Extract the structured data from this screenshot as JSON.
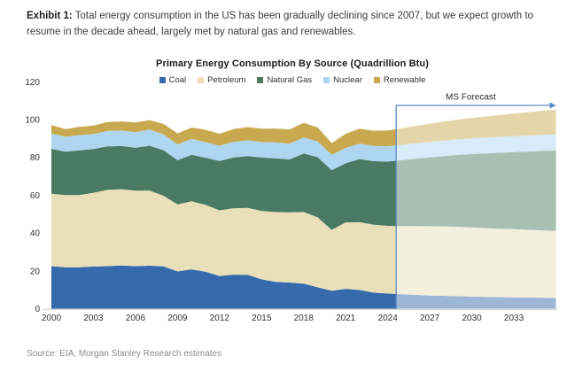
{
  "exhibit": {
    "label": "Exhibit 1:",
    "text": " Total energy consumption in the US has been gradually declining since 2007, but we expect growth to resume in the decade ahead, largely met by natural gas and renewables."
  },
  "chart_data": {
    "type": "area",
    "stacked": true,
    "title": "Primary Energy Consumption By Source (Quadrillion Btu)",
    "xlabel": "",
    "ylabel": "",
    "x_start": 2000,
    "x_end": 2036,
    "x_tick_labels": [
      2000,
      2003,
      2006,
      2009,
      2012,
      2015,
      2018,
      2021,
      2024,
      2027,
      2030,
      2033
    ],
    "ylim": [
      0,
      120
    ],
    "y_ticks": [
      0,
      20,
      40,
      60,
      80,
      100,
      120
    ],
    "grid": false,
    "legend_position": "top",
    "forecast": {
      "label": "MS Forecast",
      "start_year": 2024.6,
      "end_year": 2036
    },
    "series": [
      {
        "name": "Coal",
        "color": "#376aac",
        "values": [
          22.5,
          21.9,
          21.9,
          22.3,
          22.5,
          22.8,
          22.5,
          22.7,
          22.4,
          19.7,
          20.8,
          19.6,
          17.3,
          18.0,
          17.9,
          15.5,
          14.2,
          13.8,
          13.2,
          11.3,
          9.5,
          10.5,
          9.9,
          8.5,
          8.0,
          7.6,
          7.3,
          7.0,
          6.8,
          6.6,
          6.4,
          6.2,
          6.1,
          6.0,
          5.9,
          5.8,
          5.7
        ]
      },
      {
        "name": "Petroleum",
        "color": "#e9e0ba",
        "values": [
          38.3,
          38.2,
          38.2,
          39.0,
          40.3,
          40.4,
          39.9,
          39.8,
          37.3,
          35.4,
          36.0,
          35.3,
          34.7,
          35.1,
          35.4,
          36.2,
          36.9,
          37.1,
          37.9,
          37.0,
          32.2,
          35.1,
          35.8,
          35.9,
          35.8,
          36.1,
          36.4,
          36.6,
          36.7,
          36.7,
          36.6,
          36.4,
          36.2,
          36.0,
          35.8,
          35.6,
          35.4
        ]
      },
      {
        "name": "Natural Gas",
        "color": "#4a7a63",
        "values": [
          23.8,
          22.9,
          23.6,
          23.1,
          23.0,
          22.8,
          22.7,
          23.7,
          24.1,
          23.4,
          24.6,
          24.9,
          26.1,
          26.9,
          27.4,
          28.2,
          28.4,
          28.0,
          31.0,
          31.8,
          31.5,
          31.3,
          33.4,
          33.6,
          34.0,
          34.8,
          35.6,
          36.4,
          37.2,
          38.0,
          38.8,
          39.5,
          40.2,
          40.8,
          41.4,
          42.0,
          42.5
        ]
      },
      {
        "name": "Nuclear",
        "color": "#aed6f0",
        "values": [
          8.0,
          8.0,
          8.1,
          7.9,
          8.2,
          8.2,
          8.2,
          8.5,
          8.4,
          8.4,
          8.4,
          8.3,
          8.1,
          8.3,
          8.3,
          8.3,
          8.4,
          8.4,
          8.4,
          8.3,
          8.2,
          8.1,
          8.1,
          8.1,
          8.1,
          8.1,
          8.2,
          8.2,
          8.2,
          8.3,
          8.3,
          8.3,
          8.4,
          8.4,
          8.4,
          8.5,
          8.5
        ]
      },
      {
        "name": "Renewable",
        "color": "#c9a94f",
        "values": [
          4.5,
          4.0,
          4.3,
          4.5,
          4.7,
          4.8,
          5.2,
          5.0,
          5.5,
          5.8,
          6.0,
          6.5,
          6.3,
          6.7,
          7.0,
          7.0,
          7.3,
          7.5,
          7.8,
          7.4,
          6.2,
          7.5,
          8.0,
          8.0,
          8.3,
          8.8,
          9.2,
          9.6,
          10.0,
          10.4,
          10.8,
          11.2,
          11.6,
          12.0,
          12.4,
          12.8,
          13.1
        ]
      }
    ]
  },
  "source": {
    "text": "Source: EIA, Morgan Stanley Research estimates"
  },
  "colors": {
    "forecast_line": "#5b8ac4",
    "forecast_overlay": "rgba(255,255,255,0.52)",
    "axis_line": "#c9c9c9",
    "axis_text": "#333333"
  }
}
